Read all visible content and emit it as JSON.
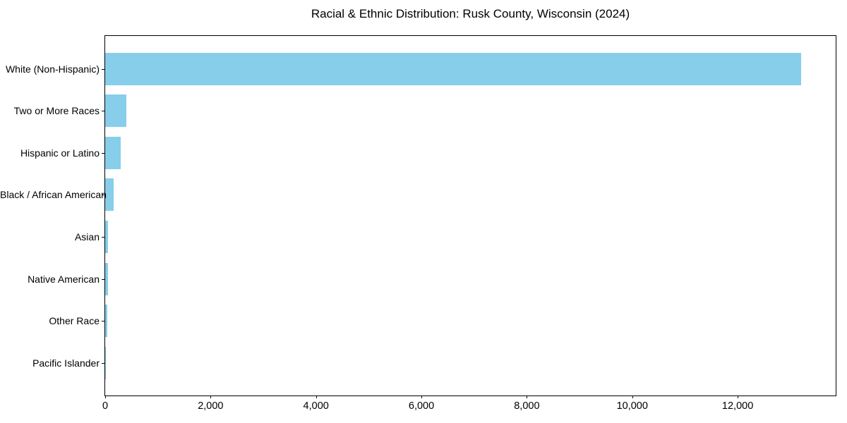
{
  "chart_data": {
    "type": "bar",
    "orientation": "horizontal",
    "title": "Racial & Ethnic Distribution: Rusk County, Wisconsin (2024)",
    "categories": [
      "White (Non-Hispanic)",
      "Two or More Races",
      "Hispanic or Latino",
      "Black / African American",
      "Asian",
      "Native American",
      "Other Race",
      "Pacific Islander"
    ],
    "values": [
      13200,
      400,
      290,
      155,
      60,
      55,
      35,
      5
    ],
    "xlabel": "",
    "ylabel": "",
    "xlim": [
      0,
      13860
    ],
    "xticks": [
      0,
      2000,
      4000,
      6000,
      8000,
      10000,
      12000
    ],
    "xtick_labels": [
      "0",
      "2,000",
      "4,000",
      "6,000",
      "8,000",
      "10,000",
      "12,000"
    ],
    "grid": false,
    "legend": false,
    "bar_color": "#87ceeb",
    "axis_color": "#000000",
    "background_color": "#ffffff"
  }
}
